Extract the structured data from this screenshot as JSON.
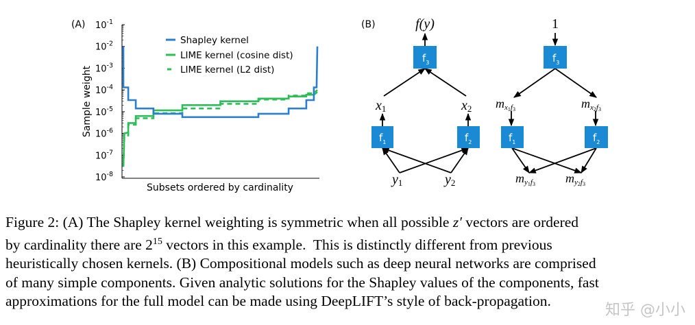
{
  "chart_data": {
    "type": "line",
    "panel_label": "(A)",
    "xlabel": "Subsets ordered by cardinality",
    "ylabel": "Sample weight",
    "yscale": "log",
    "ylim": [
      1e-08,
      0.1
    ],
    "yticks": [
      {
        "base": "10",
        "exp": "-1"
      },
      {
        "base": "10",
        "exp": "-2"
      },
      {
        "base": "10",
        "exp": "-3"
      },
      {
        "base": "10",
        "exp": "-4"
      },
      {
        "base": "10",
        "exp": "-5"
      },
      {
        "base": "10",
        "exp": "-6"
      },
      {
        "base": "10",
        "exp": "-7"
      },
      {
        "base": "10",
        "exp": "-8"
      }
    ],
    "xlim": [
      0,
      1
    ],
    "grid": false,
    "legend_position": "top-right",
    "series": [
      {
        "name": "Shapley kernel",
        "color": "#2b7fce",
        "style": "solid",
        "points": [
          [
            0,
            0.01
          ],
          [
            0,
            0.00013
          ],
          [
            0.025,
            0.00013
          ],
          [
            0.025,
            3.4e-05
          ],
          [
            0.064,
            3.4e-05
          ],
          [
            0.064,
            1.4e-05
          ],
          [
            0.155,
            1.4e-05
          ],
          [
            0.155,
            8e-06
          ],
          [
            0.304,
            8e-06
          ],
          [
            0.304,
            5.6e-06
          ],
          [
            0.696,
            5.6e-06
          ],
          [
            0.696,
            8e-06
          ],
          [
            0.852,
            8e-06
          ],
          [
            0.852,
            1.4e-05
          ],
          [
            0.943,
            1.4e-05
          ],
          [
            0.943,
            3.4e-05
          ],
          [
            0.982,
            3.4e-05
          ],
          [
            0.982,
            0.00013
          ],
          [
            0.996,
            0.00013
          ],
          [
            1,
            0.01
          ]
        ]
      },
      {
        "name": "LIME kernel (cosine dist)",
        "color": "#2ebd59",
        "style": "solid",
        "points": [
          [
            0,
            3e-08
          ],
          [
            0.005,
            1e-06
          ],
          [
            0.025,
            1.1e-06
          ],
          [
            0.025,
            3e-06
          ],
          [
            0.064,
            3e-06
          ],
          [
            0.064,
            6.3e-06
          ],
          [
            0.155,
            6.3e-06
          ],
          [
            0.155,
            1.15e-05
          ],
          [
            0.304,
            1.15e-05
          ],
          [
            0.304,
            2e-05
          ],
          [
            0.5,
            2e-05
          ],
          [
            0.5,
            3e-05
          ],
          [
            0.696,
            3e-05
          ],
          [
            0.696,
            4e-05
          ],
          [
            0.852,
            4e-05
          ],
          [
            0.852,
            5e-05
          ],
          [
            0.943,
            5e-05
          ],
          [
            0.943,
            6e-05
          ],
          [
            0.982,
            6e-05
          ],
          [
            1,
            8e-05
          ]
        ]
      },
      {
        "name": "LIME kernel (L2 dist)",
        "color": "#2ebd59",
        "style": "dashed",
        "points": [
          [
            0,
            3e-08
          ],
          [
            0.005,
            7e-07
          ],
          [
            0.025,
            8e-07
          ],
          [
            0.025,
            2.5e-06
          ],
          [
            0.064,
            2.5e-06
          ],
          [
            0.064,
            5e-06
          ],
          [
            0.155,
            5e-06
          ],
          [
            0.155,
            8.5e-06
          ],
          [
            0.304,
            8.5e-06
          ],
          [
            0.304,
            1.4e-05
          ],
          [
            0.5,
            1.4e-05
          ],
          [
            0.5,
            2.3e-05
          ],
          [
            0.696,
            2.3e-05
          ],
          [
            0.696,
            3.6e-05
          ],
          [
            0.852,
            3.6e-05
          ],
          [
            0.852,
            5.5e-05
          ],
          [
            0.943,
            5.5e-05
          ],
          [
            0.943,
            7e-05
          ],
          [
            0.982,
            7e-05
          ],
          [
            1,
            0.0001
          ]
        ]
      }
    ]
  },
  "diagram": {
    "panel_label": "(B)",
    "box_color": "#1a8ad4",
    "forward": {
      "output": "f(y)",
      "boxes": [
        {
          "f": "f",
          "sub": "3"
        },
        {
          "f": "f",
          "sub": "1"
        },
        {
          "f": "f",
          "sub": "2"
        }
      ],
      "x1": {
        "v": "x",
        "sub": "1"
      },
      "x2": {
        "v": "x",
        "sub": "2"
      },
      "y1": {
        "v": "y",
        "sub": "1"
      },
      "y2": {
        "v": "y",
        "sub": "2"
      }
    },
    "backward": {
      "input": "1",
      "boxes": [
        {
          "f": "f",
          "sub": "3"
        },
        {
          "f": "f",
          "sub": "1"
        },
        {
          "f": "f",
          "sub": "2"
        }
      ],
      "mx1": {
        "v": "m",
        "sub1": "x",
        "sub2": "1",
        "sub3": "f",
        "sub4": "3"
      },
      "mx2": {
        "v": "m",
        "sub1": "x",
        "sub2": "2",
        "sub3": "f",
        "sub4": "3"
      },
      "my1": {
        "v": "m",
        "sub1": "y",
        "sub2": "1",
        "sub3": "f",
        "sub4": "3"
      },
      "my2": {
        "v": "m",
        "sub1": "y",
        "sub2": "2",
        "sub3": "f",
        "sub4": "3"
      }
    }
  },
  "caption": {
    "line1a": "Figure 2: (A) The Shapley kernel weighting is symmetric when all possible ",
    "line1_var": "z′",
    "line1b": " vectors are ordered",
    "line2a": "by cardinality there are ",
    "line2_base": "2",
    "line2_exp": "15",
    "line2b": " vectors in this example.  This is distinctly different from previous",
    "line3": "heuristically chosen kernels. (B) Compositional models such as deep neural networks are comprised",
    "line4": "of many simple components. Given analytic solutions for the Shapley values of the components, fast",
    "line5": "approximations for the full model can be made using DeepLIFT’s style of back-propagation."
  },
  "watermark": "知乎 @小小"
}
